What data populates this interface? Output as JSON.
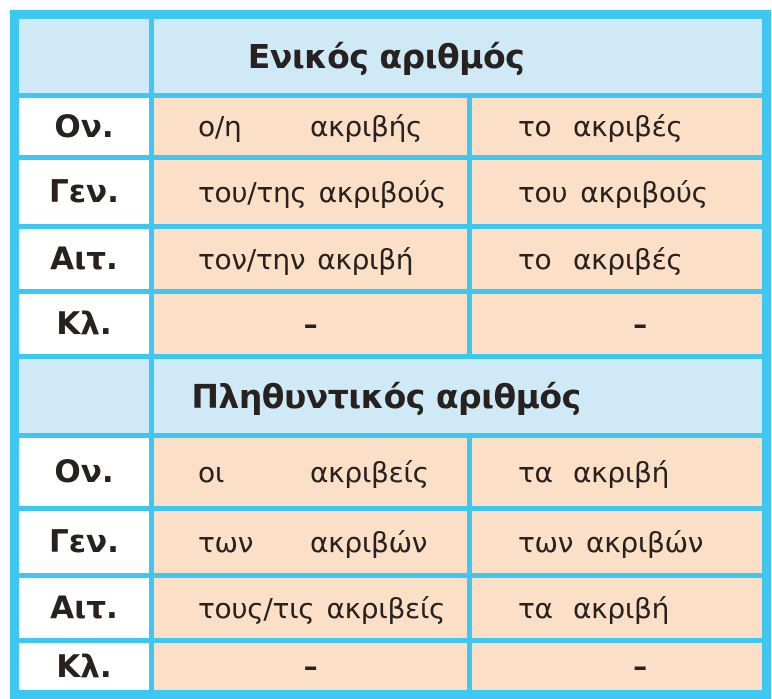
{
  "title": "Greek adjective declension table for ακριβής / ακριβές",
  "colors": {
    "border_cyan": "#3ec7f0",
    "header_blue_bg": "#cfe9f7",
    "data_peach_bg": "#fbdfc7",
    "label_white_bg": "#ffffff",
    "text": "#27211f"
  },
  "sections": [
    {
      "header": "Ενικός αριθμός",
      "rows": [
        {
          "label": "Ον.",
          "masc_fem": {
            "article": "ο/η",
            "form": "ακριβής"
          },
          "neuter": {
            "article": "το",
            "form": "ακριβές"
          }
        },
        {
          "label": "Γεν.",
          "masc_fem": {
            "article": "του/της",
            "form": "ακριβούς"
          },
          "neuter": {
            "article": "του",
            "form": "ακριβούς"
          }
        },
        {
          "label": "Αιτ.",
          "masc_fem": {
            "article": "τον/την",
            "form": "ακριβή"
          },
          "neuter": {
            "article": "το",
            "form": "ακριβές"
          }
        },
        {
          "label": "Κλ.",
          "masc_fem": {
            "dash": "–"
          },
          "neuter": {
            "dash": "–"
          }
        }
      ]
    },
    {
      "header": "Πληθυντικός αριθμός",
      "rows": [
        {
          "label": "Ον.",
          "masc_fem": {
            "article": "οι",
            "form": "ακριβείς"
          },
          "neuter": {
            "article": "τα",
            "form": "ακριβή"
          }
        },
        {
          "label": "Γεν.",
          "masc_fem": {
            "article": "των",
            "form": "ακριβών"
          },
          "neuter": {
            "article": "των",
            "form": "ακριβών"
          }
        },
        {
          "label": "Αιτ.",
          "masc_fem": {
            "article": "τους/τις",
            "form": "ακριβείς"
          },
          "neuter": {
            "article": "τα",
            "form": "ακριβή"
          }
        },
        {
          "label": "Κλ.",
          "masc_fem": {
            "dash": "–"
          },
          "neuter": {
            "dash": "–"
          }
        }
      ]
    }
  ]
}
